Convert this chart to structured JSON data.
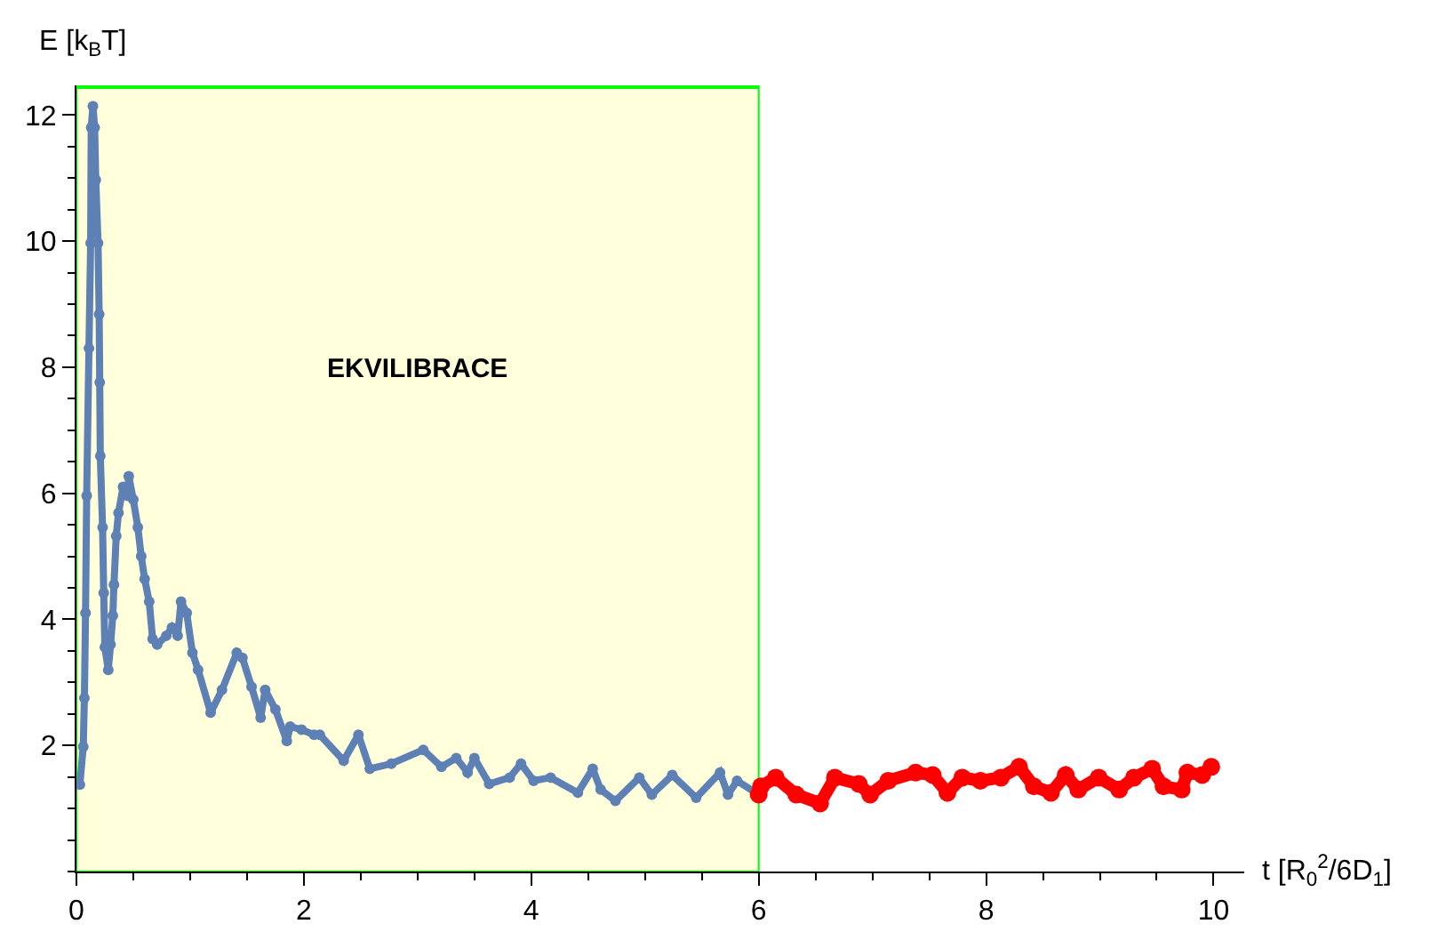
{
  "chart_data": {
    "type": "line",
    "xlabel": "t [R$_{0}$$^{2}$/6D$_{1}$]",
    "ylabel": "E [k$_{B}$T]",
    "xlim": [
      0,
      10.27
    ],
    "ylim": [
      0,
      12.47
    ],
    "xticks": [
      0,
      2,
      4,
      6,
      8,
      10
    ],
    "yticks": [
      2,
      4,
      6,
      8,
      10,
      12
    ],
    "grid": false,
    "marker": "circle",
    "line_style": "solid",
    "bands": [
      {
        "axis": "x",
        "from": 0,
        "to": 6,
        "label": "EKVILIBRACE",
        "color": "#ffffdc"
      }
    ],
    "series": [
      {
        "color": "#5e81b5",
        "x": [
          0.03,
          0.06,
          0.07,
          0.08,
          0.09,
          0.11,
          0.125,
          0.13,
          0.145,
          0.16,
          0.17,
          0.19,
          0.2,
          0.205,
          0.21,
          0.23,
          0.24,
          0.25,
          0.28,
          0.3,
          0.32,
          0.33,
          0.35,
          0.37,
          0.41,
          0.45,
          0.46,
          0.5,
          0.54,
          0.57,
          0.6,
          0.64,
          0.67,
          0.71,
          0.79,
          0.84,
          0.89,
          0.92,
          0.97,
          1.02,
          1.07,
          1.18,
          1.28,
          1.41,
          1.46,
          1.54,
          1.62,
          1.66,
          1.75,
          1.85,
          1.88,
          1.98,
          2.09,
          2.14,
          2.35,
          2.48,
          2.58,
          2.77,
          3.05,
          3.21,
          3.34,
          3.44,
          3.5,
          3.63,
          3.81,
          3.91,
          4.02,
          4.17,
          4.41,
          4.54,
          4.61,
          4.74,
          4.95,
          5.06,
          5.24,
          5.45,
          5.66,
          5.73,
          5.81,
          6.0
        ],
        "values": [
          1.38,
          1.98,
          2.75,
          4.1,
          5.96,
          8.3,
          9.97,
          11.8,
          12.14,
          11.8,
          10.97,
          9.97,
          8.84,
          7.76,
          6.59,
          5.46,
          4.42,
          3.56,
          3.2,
          3.6,
          4.06,
          4.55,
          5.32,
          5.69,
          6.1,
          5.96,
          6.27,
          5.9,
          5.46,
          5.0,
          4.64,
          4.28,
          3.69,
          3.6,
          3.74,
          3.87,
          3.74,
          4.28,
          4.1,
          3.47,
          3.2,
          2.52,
          2.88,
          3.47,
          3.39,
          2.93,
          2.44,
          2.88,
          2.57,
          2.07,
          2.3,
          2.25,
          2.17,
          2.17,
          1.76,
          2.17,
          1.63,
          1.71,
          1.93,
          1.66,
          1.8,
          1.57,
          1.8,
          1.39,
          1.49,
          1.71,
          1.44,
          1.49,
          1.25,
          1.63,
          1.3,
          1.12,
          1.49,
          1.22,
          1.53,
          1.17,
          1.57,
          1.22,
          1.44,
          1.22
        ]
      },
      {
        "color": "#ff0000",
        "x": [
          6.0,
          6.02,
          6.15,
          6.33,
          6.54,
          6.67,
          6.88,
          6.98,
          7.14,
          7.38,
          7.53,
          7.66,
          7.79,
          7.95,
          8.13,
          8.29,
          8.42,
          8.57,
          8.7,
          8.81,
          8.99,
          9.17,
          9.3,
          9.46,
          9.56,
          9.72,
          9.77,
          9.9,
          9.98
        ],
        "values": [
          1.22,
          1.35,
          1.49,
          1.22,
          1.08,
          1.49,
          1.39,
          1.22,
          1.44,
          1.57,
          1.53,
          1.25,
          1.49,
          1.44,
          1.49,
          1.66,
          1.35,
          1.25,
          1.53,
          1.3,
          1.49,
          1.3,
          1.49,
          1.63,
          1.35,
          1.3,
          1.57,
          1.53,
          1.66
        ]
      }
    ]
  }
}
